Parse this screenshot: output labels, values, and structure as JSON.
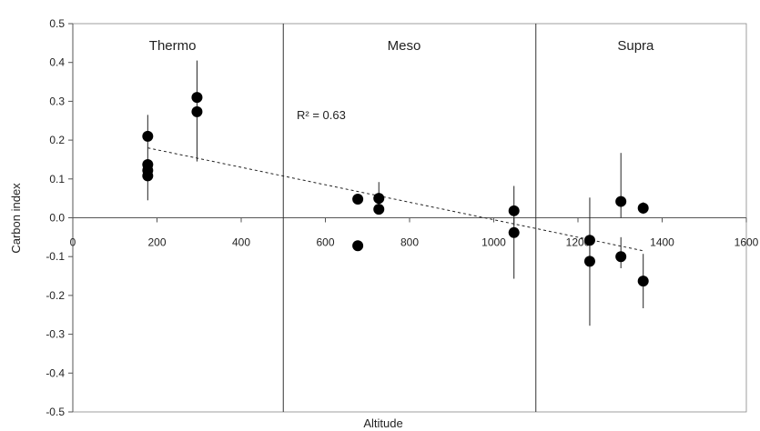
{
  "chart_data": {
    "type": "scatter",
    "xlabel": "Altitude",
    "ylabel": "Carbon index",
    "xlim": [
      0,
      1600
    ],
    "ylim": [
      -0.5,
      0.5
    ],
    "x_ticks": [
      0,
      200,
      400,
      600,
      800,
      1000,
      1200,
      1400,
      1600
    ],
    "y_ticks": [
      -0.5,
      -0.4,
      -0.3,
      -0.2,
      -0.1,
      0.0,
      0.1,
      0.2,
      0.3,
      0.4,
      0.5
    ],
    "grid": false,
    "zones": [
      {
        "label": "Thermo",
        "from": 0,
        "to": 500
      },
      {
        "label": "Meso",
        "from": 500,
        "to": 1100
      },
      {
        "label": "Supra",
        "from": 1100,
        "to": 1600
      }
    ],
    "points": [
      {
        "x": 178,
        "y": 0.21,
        "err_low": 0.045,
        "err_high": 0.265
      },
      {
        "x": 178,
        "y": 0.137
      },
      {
        "x": 178,
        "y": 0.122
      },
      {
        "x": 178,
        "y": 0.108
      },
      {
        "x": 295,
        "y": 0.31,
        "err_low": 0.145,
        "err_high": 0.405
      },
      {
        "x": 295,
        "y": 0.273
      },
      {
        "x": 677,
        "y": 0.048
      },
      {
        "x": 677,
        "y": -0.072
      },
      {
        "x": 727,
        "y": 0.05,
        "err_low": 0.01,
        "err_high": 0.092
      },
      {
        "x": 727,
        "y": 0.022
      },
      {
        "x": 1048,
        "y": 0.018,
        "err_low": -0.02,
        "err_high": 0.082
      },
      {
        "x": 1048,
        "y": -0.038,
        "err_low": -0.157,
        "err_high": 0.0
      },
      {
        "x": 1228,
        "y": -0.058,
        "err_low": -0.13,
        "err_high": 0.052
      },
      {
        "x": 1228,
        "y": -0.112,
        "err_low": -0.278,
        "err_high": -0.05
      },
      {
        "x": 1302,
        "y": 0.042,
        "err_low": 0.0,
        "err_high": 0.167
      },
      {
        "x": 1302,
        "y": -0.1,
        "err_low": -0.13,
        "err_high": -0.05
      },
      {
        "x": 1355,
        "y": 0.025,
        "err_low": 0.01,
        "err_high": 0.04
      },
      {
        "x": 1355,
        "y": -0.163,
        "err_low": -0.233,
        "err_high": -0.093
      }
    ],
    "trendline": {
      "x": [
        178,
        1355
      ],
      "y": [
        0.18,
        -0.085
      ],
      "style": "dashed"
    },
    "annotation": "R² = 0.63"
  }
}
